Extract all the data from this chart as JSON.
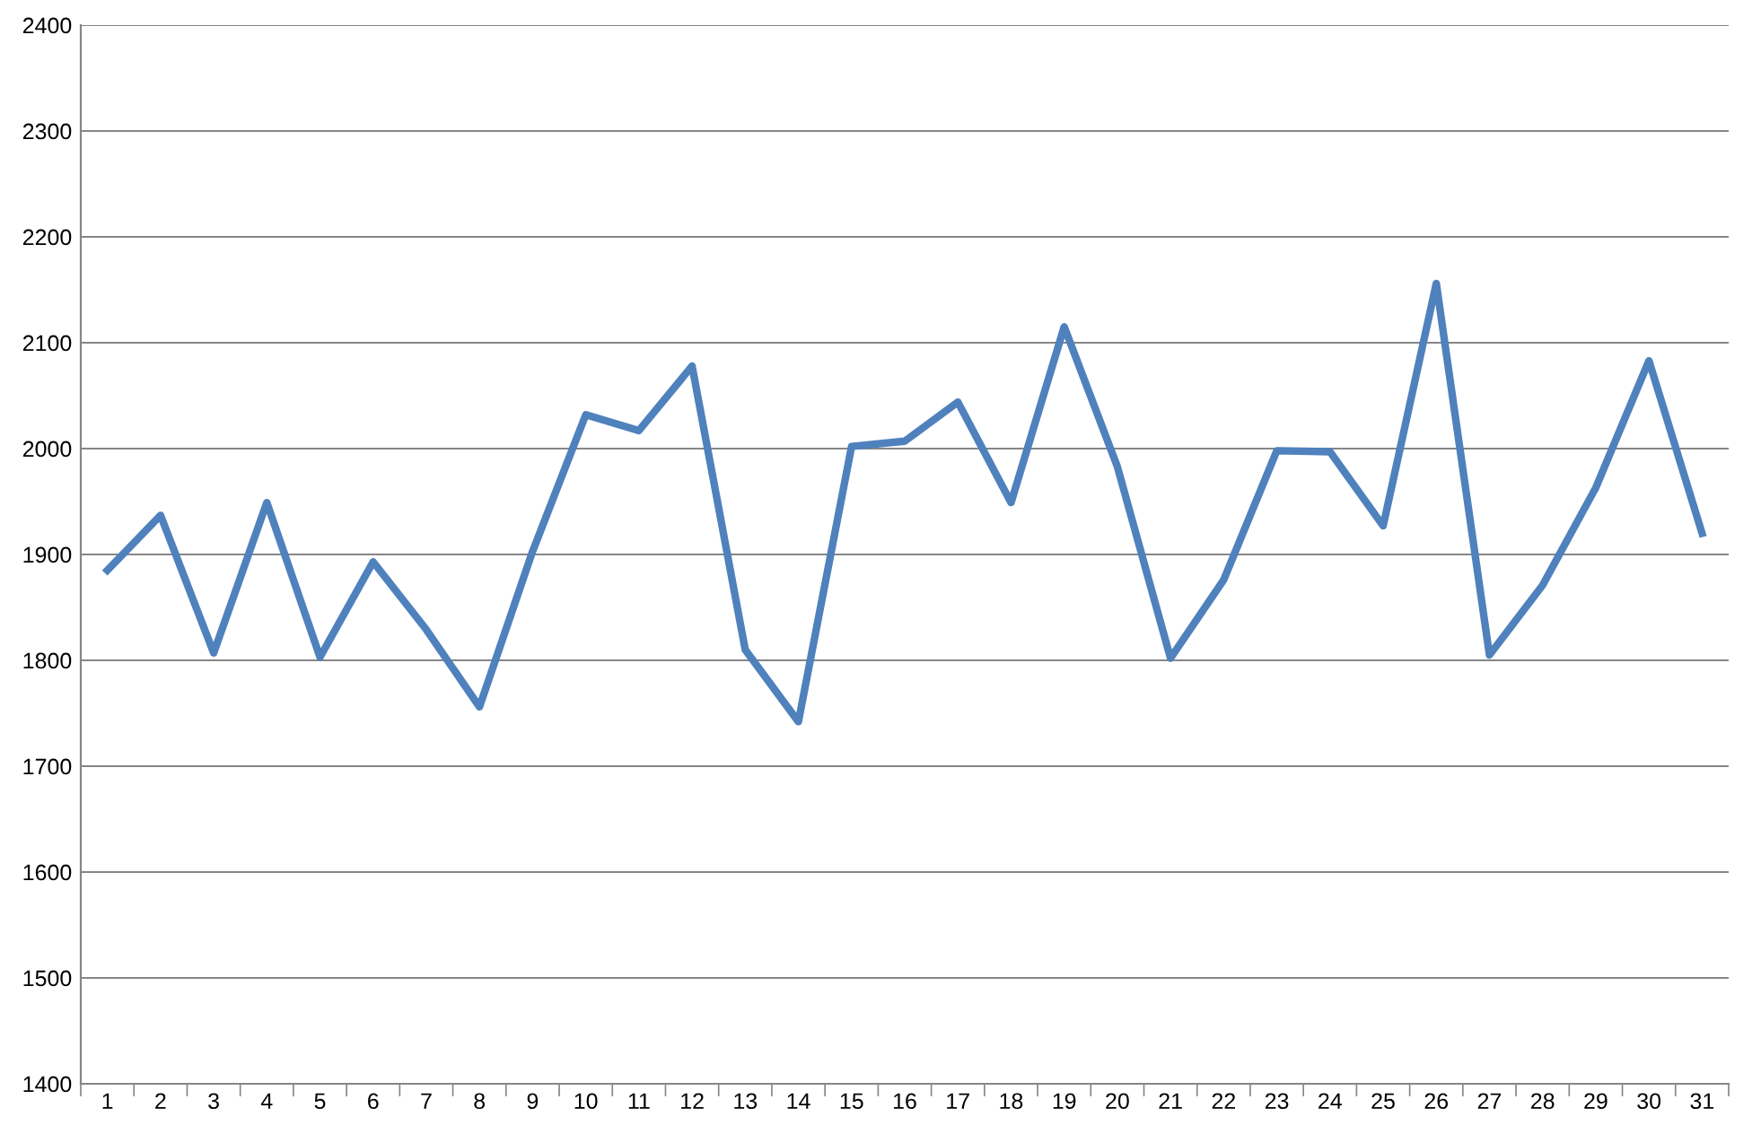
{
  "chart_data": {
    "type": "line",
    "categories": [
      "1",
      "2",
      "3",
      "4",
      "5",
      "6",
      "7",
      "8",
      "9",
      "10",
      "11",
      "12",
      "13",
      "14",
      "15",
      "16",
      "17",
      "18",
      "19",
      "20",
      "21",
      "22",
      "23",
      "24",
      "25",
      "26",
      "27",
      "28",
      "29",
      "30",
      "31"
    ],
    "series": [
      {
        "color": "#4f81bd",
        "values": [
          1885,
          1937,
          1807,
          1949,
          1803,
          1893,
          1829,
          1756,
          1903,
          2032,
          2017,
          2078,
          1810,
          1742,
          2002,
          2007,
          2044,
          1949,
          2115,
          1983,
          1802,
          1876,
          1998,
          1997,
          1927,
          2156,
          1805,
          1871,
          1963,
          2083,
          1920
        ]
      }
    ],
    "ylim": [
      1400,
      2400
    ],
    "yticks": [
      1400,
      1500,
      1600,
      1700,
      1800,
      1900,
      2000,
      2100,
      2200,
      2300,
      2400
    ],
    "grid": "y",
    "marker": "none",
    "line_style": "solid"
  }
}
